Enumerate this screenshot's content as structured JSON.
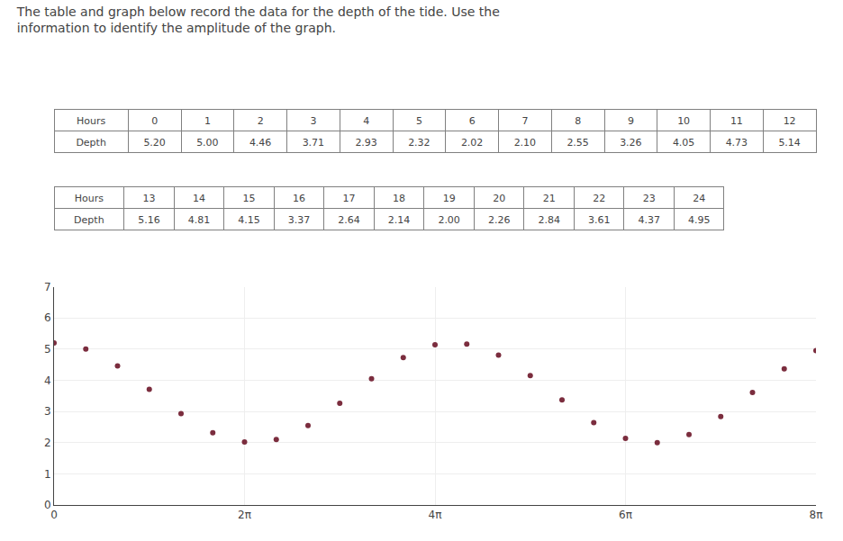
{
  "chart_data": [
    {
      "type": "table",
      "title": "The table and graph below record the data for the depth of the tide. Use the\ninformation to identify the amplitude of the graph.",
      "header": [
        "Hours",
        "0",
        "1",
        "2",
        "3",
        "4",
        "5",
        "6",
        "7",
        "8",
        "9",
        "10",
        "11",
        "12"
      ],
      "cells": [
        "Depth",
        "5.20",
        "5.00",
        "4.46",
        "3.71",
        "2.93",
        "2.32",
        "2.02",
        "2.10",
        "2.55",
        "3.26",
        "4.05",
        "4.73",
        "5.14"
      ]
    },
    {
      "type": "table",
      "header": [
        "Hours",
        "13",
        "14",
        "15",
        "16",
        "17",
        "18",
        "19",
        "20",
        "21",
        "22",
        "23",
        "24"
      ],
      "cells": [
        "Depth",
        "5.16",
        "4.81",
        "4.15",
        "3.37",
        "2.64",
        "2.14",
        "2.00",
        "2.26",
        "2.84",
        "3.61",
        "4.37",
        "4.95"
      ]
    },
    {
      "type": "scatter",
      "x": [
        0,
        1.0471975511965976,
        2.0943951023931953,
        3.141592653589793,
        4.1887902047863905,
        5.235987755982988,
        6.283185307179586,
        7.330382858376184,
        8.377580409572781,
        9.42477796076938,
        10.471975511965976,
        11.519173063162574,
        12.566370614359172,
        13.613568165555769,
        14.660765716752367,
        15.707963267948966,
        16.755160819145562,
        17.80235837034216,
        18.84955592153876,
        19.896753472735355,
        20.943951023931955,
        21.991148575128552,
        23.03834612632515,
        24.085543677521745,
        25.132741228718345
      ],
      "values": [
        5.2,
        5.0,
        4.46,
        3.71,
        2.93,
        2.32,
        2.02,
        2.1,
        2.55,
        3.26,
        4.05,
        4.73,
        5.14,
        5.16,
        4.81,
        4.15,
        3.37,
        2.64,
        2.14,
        2.0,
        2.26,
        2.84,
        3.61,
        4.37,
        4.95
      ],
      "color": "#7B2D3E",
      "xlim": [
        0,
        25.132741228718345
      ],
      "xticks": [
        0,
        {
          "value": 6.283185307179586,
          "label": "2π"
        },
        {
          "value": 12.566370614359172,
          "label": "4π"
        },
        {
          "value": 18.84955592153876,
          "label": "6π"
        },
        {
          "value": 25.132741228718345,
          "label": "8π"
        }
      ],
      "ylim": [
        0,
        7
      ],
      "yticks": [
        0,
        1,
        2,
        3,
        4,
        5,
        6,
        7
      ],
      "grid": true
    }
  ]
}
